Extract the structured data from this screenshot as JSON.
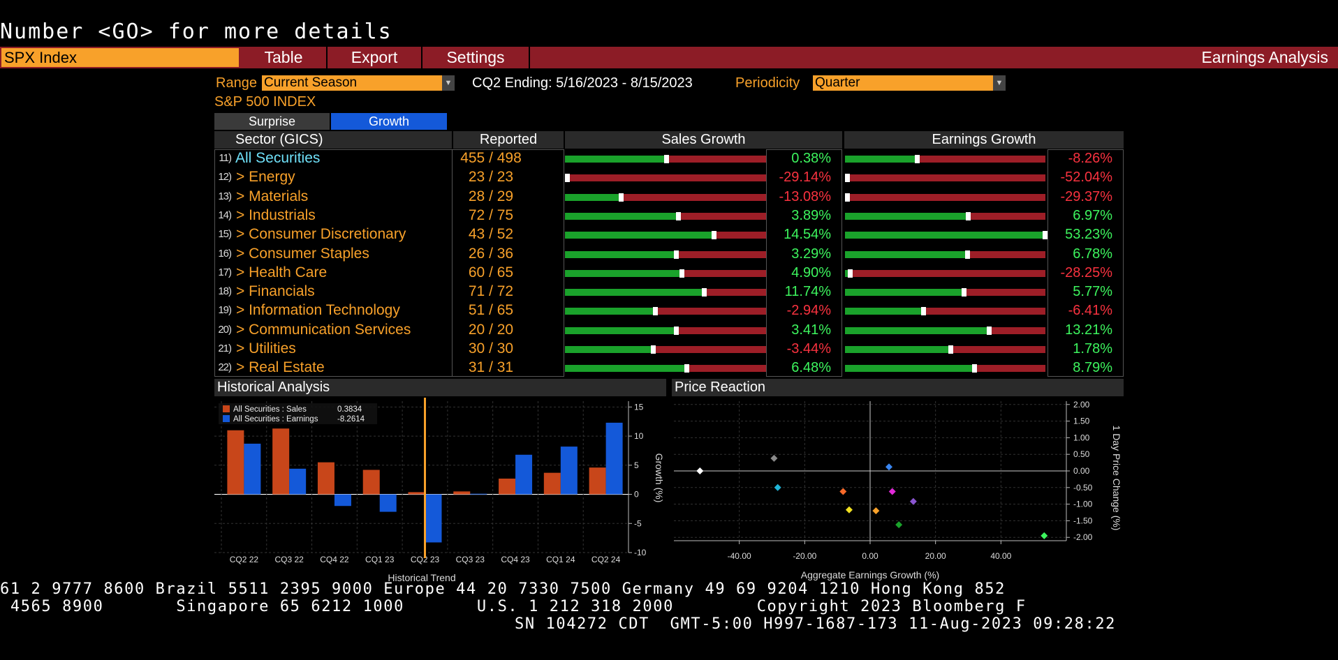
{
  "command_line": "Number <GO> for more details",
  "topbar": {
    "security": "SPX Index",
    "buttons": [
      "Table",
      "Export",
      "Settings"
    ],
    "title": "Earnings Analysis"
  },
  "controls": {
    "range_label": "Range",
    "range_value": "Current Season",
    "period_text": "CQ2 Ending: 5/16/2023 - 8/15/2023",
    "periodicity_label": "Periodicity",
    "periodicity_value": "Quarter",
    "index_name": "S&P 500 INDEX",
    "toggle_surprise": "Surprise",
    "toggle_growth": "Growth"
  },
  "table": {
    "headers": {
      "sector": "Sector (GICS)",
      "reported": "Reported",
      "sales": "Sales Growth",
      "earnings": "Earnings Growth"
    },
    "rows": [
      {
        "num": "11)",
        "name": "All Securities",
        "reported": "455",
        "total": "498",
        "sales": "0.38%",
        "sales_val": 0.38,
        "earn": "-8.26%",
        "earn_val": -8.26,
        "all": true
      },
      {
        "num": "12)",
        "name": "> Energy",
        "reported": "23",
        "total": "23",
        "sales": "-29.14%",
        "sales_val": -29.14,
        "earn": "-52.04%",
        "earn_val": -52.04
      },
      {
        "num": "13)",
        "name": "> Materials",
        "reported": "28",
        "total": "29",
        "sales": "-13.08%",
        "sales_val": -13.08,
        "earn": "-29.37%",
        "earn_val": -29.37
      },
      {
        "num": "14)",
        "name": "> Industrials",
        "reported": "72",
        "total": "75",
        "sales": "3.89%",
        "sales_val": 3.89,
        "earn": "6.97%",
        "earn_val": 6.97
      },
      {
        "num": "15)",
        "name": "> Consumer Discretionary",
        "reported": "43",
        "total": "52",
        "sales": "14.54%",
        "sales_val": 14.54,
        "earn": "53.23%",
        "earn_val": 53.23
      },
      {
        "num": "16)",
        "name": "> Consumer Staples",
        "reported": "26",
        "total": "36",
        "sales": "3.29%",
        "sales_val": 3.29,
        "earn": "6.78%",
        "earn_val": 6.78
      },
      {
        "num": "17)",
        "name": "> Health Care",
        "reported": "60",
        "total": "65",
        "sales": "4.90%",
        "sales_val": 4.9,
        "earn": "-28.25%",
        "earn_val": -28.25
      },
      {
        "num": "18)",
        "name": "> Financials",
        "reported": "71",
        "total": "72",
        "sales": "11.74%",
        "sales_val": 11.74,
        "earn": "5.77%",
        "earn_val": 5.77
      },
      {
        "num": "19)",
        "name": "> Information Technology",
        "reported": "51",
        "total": "65",
        "sales": "-2.94%",
        "sales_val": -2.94,
        "earn": "-6.41%",
        "earn_val": -6.41
      },
      {
        "num": "20)",
        "name": "> Communication Services",
        "reported": "20",
        "total": "20",
        "sales": "3.41%",
        "sales_val": 3.41,
        "earn": "13.21%",
        "earn_val": 13.21
      },
      {
        "num": "21)",
        "name": "> Utilities",
        "reported": "30",
        "total": "30",
        "sales": "-3.44%",
        "sales_val": -3.44,
        "earn": "1.78%",
        "earn_val": 1.78
      },
      {
        "num": "22)",
        "name": "> Real Estate",
        "reported": "31",
        "total": "31",
        "sales": "6.48%",
        "sales_val": 6.48,
        "earn": "8.79%",
        "earn_val": 8.79
      }
    ]
  },
  "historical": {
    "panel_title": "Historical Analysis",
    "legend": [
      {
        "name": "All Securities : Sales",
        "value": "0.3834",
        "color": "#c8461a"
      },
      {
        "name": "All Securities : Earnings",
        "value": "-8.2614",
        "color": "#1459d9"
      }
    ]
  },
  "price": {
    "panel_title": "Price Reaction"
  },
  "chart_data": [
    {
      "type": "bar",
      "title": "Historical Analysis",
      "xlabel": "Historical Trend",
      "ylabel": "Growth (%)",
      "ylim": [
        -10,
        16
      ],
      "yticks": [
        15,
        10,
        5,
        0,
        -5,
        -10
      ],
      "categories": [
        "CQ2 22",
        "CQ3 22",
        "CQ4 22",
        "CQ1 23",
        "CQ2 23",
        "CQ3 23",
        "CQ4 23",
        "CQ1 24",
        "CQ2 24"
      ],
      "current_category": "CQ2 23",
      "series": [
        {
          "name": "All Securities : Sales",
          "values": [
            11,
            11.3,
            5.5,
            4.2,
            0.38,
            0.5,
            2.7,
            3.7,
            4.6
          ],
          "color": "#c8461a"
        },
        {
          "name": "All Securities : Earnings",
          "values": [
            8.7,
            4.4,
            -2,
            -3,
            -8.26,
            0.1,
            6.8,
            8.2,
            12.3
          ],
          "color": "#1459d9"
        }
      ],
      "legend": "top-left"
    },
    {
      "type": "scatter",
      "title": "Price Reaction",
      "xlabel": "Aggregate Earnings Growth (%)",
      "ylabel": "1 Day Price Change (%)",
      "xlim": [
        -60,
        60
      ],
      "ylim": [
        -2.1,
        2.1
      ],
      "xticks": [
        "-40.00",
        "-20.00",
        "0.00",
        "20.00",
        "40.00"
      ],
      "yticks": [
        "2.00",
        "1.50",
        "1.00",
        "0.50",
        "0.00",
        "-0.50",
        "-1.00",
        "-1.50",
        "-2.00"
      ],
      "points": [
        {
          "x": -52.04,
          "y": 0.0,
          "color": "#ffffff"
        },
        {
          "x": -29.37,
          "y": 0.38,
          "color": "#8a8a8a"
        },
        {
          "x": -28.25,
          "y": -0.5,
          "color": "#1fb4d6"
        },
        {
          "x": -8.26,
          "y": -0.62,
          "color": "#f86a2a"
        },
        {
          "x": -6.41,
          "y": -1.17,
          "color": "#f0e020"
        },
        {
          "x": 1.78,
          "y": -1.2,
          "color": "#f8a12a"
        },
        {
          "x": 5.77,
          "y": 0.12,
          "color": "#3a86f0"
        },
        {
          "x": 6.78,
          "y": -0.62,
          "color": "#e02ad8"
        },
        {
          "x": 8.79,
          "y": -1.62,
          "color": "#1aa22b"
        },
        {
          "x": 13.21,
          "y": -0.92,
          "color": "#8a55d0"
        },
        {
          "x": 53.23,
          "y": -1.95,
          "color": "#3df55e"
        }
      ]
    }
  ],
  "footer": {
    "line1": "61 2 9777 8600 Brazil 5511 2395 9000 Europe 44 20 7330 7500 Germany 49 69 9204 1210 Hong Kong 852",
    "line2": " 4565 8900       Singapore 65 6212 1000       U.S. 1 212 318 2000        Copyright 2023 Bloomberg F",
    "line3": "SN 104272 CDT  GMT-5:00 H997-1687-173 11-Aug-2023 09:28:22"
  }
}
